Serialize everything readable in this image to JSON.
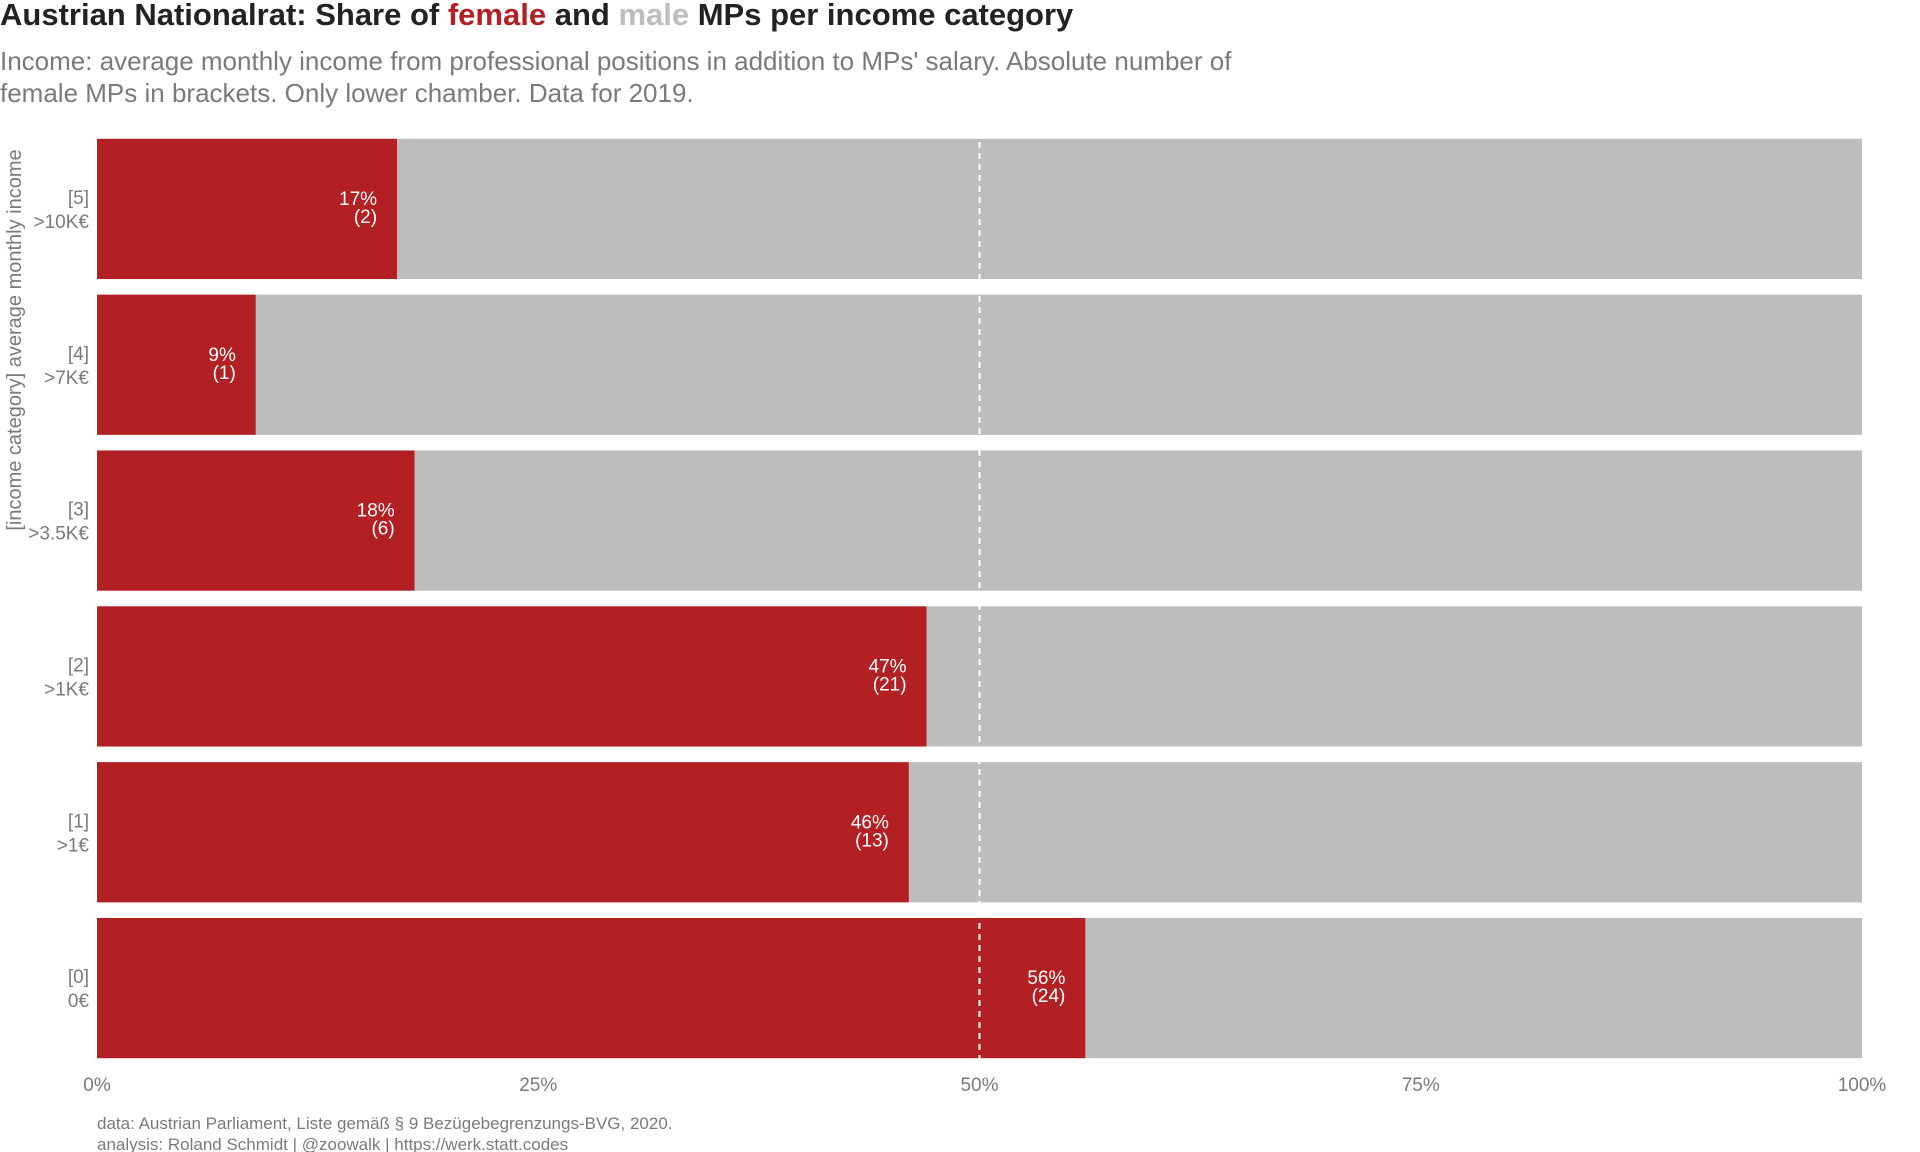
{
  "chart_data": {
    "type": "bar",
    "orientation": "horizontal",
    "stacked": true,
    "title_parts": [
      {
        "text": "Austrian Nationalrat: Share of ",
        "color": "#222222"
      },
      {
        "text": "female",
        "color": "#b22024"
      },
      {
        "text": " and ",
        "color": "#222222"
      },
      {
        "text": "male",
        "color": "#bdbdbd"
      },
      {
        "text": " MPs per income category",
        "color": "#222222"
      }
    ],
    "subtitle_lines": [
      "Income: average monthly income from professional positions in addition to MPs' salary. Absolute number of",
      "female MPs in brackets. Only lower chamber. Data for 2019."
    ],
    "ylabel": "[income category] average monthly income",
    "categories": [
      {
        "code": "[5]",
        "range": ">10K€"
      },
      {
        "code": "[4]",
        "range": ">7K€"
      },
      {
        "code": "[3]",
        "range": ">3.5K€"
      },
      {
        "code": "[2]",
        "range": ">1K€"
      },
      {
        "code": "[1]",
        "range": ">1€"
      },
      {
        "code": "[0]",
        "range": "0€"
      }
    ],
    "series": [
      {
        "name": "female",
        "color": "#b22024",
        "values": [
          17,
          9,
          18,
          47,
          46,
          56
        ]
      },
      {
        "name": "male",
        "color": "#bdbdbd",
        "values": [
          83,
          91,
          82,
          53,
          54,
          44
        ]
      }
    ],
    "value_labels": [
      "17%",
      "9%",
      "18%",
      "47%",
      "46%",
      "56%"
    ],
    "count_labels": [
      "(2)",
      "(1)",
      "(6)",
      "(21)",
      "(13)",
      "(24)"
    ],
    "x_ticks": [
      0,
      25,
      50,
      75,
      100
    ],
    "x_tick_labels": [
      "0%",
      "25%",
      "50%",
      "75%",
      "100%"
    ],
    "xlim": [
      0,
      100
    ],
    "reference_line": {
      "value": 50,
      "style": "dashed",
      "color": "#ffffff"
    },
    "grid": false,
    "legend": "in title",
    "caption_lines": [
      "data: Austrian Parliament, Liste gemäß § 9 Bezügebegrenzungs-BVG, 2020.",
      "analysis: Roland Schmidt | @zoowalk | https://werk.statt.codes"
    ]
  }
}
